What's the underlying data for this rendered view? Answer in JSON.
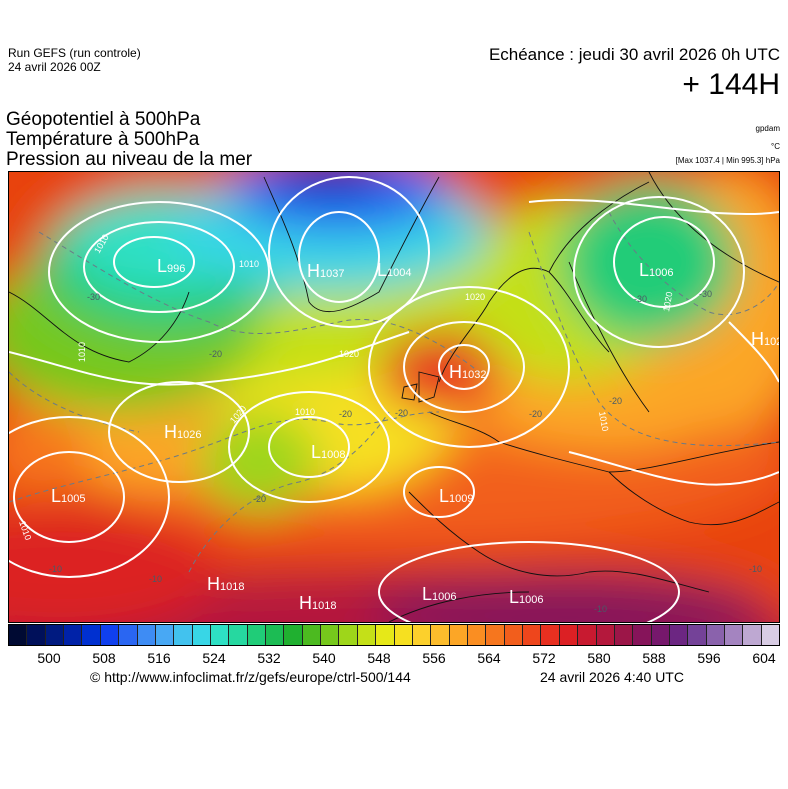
{
  "header": {
    "run_title": "Run GEFS (run controle)",
    "run_date": "24 avril 2026 00Z",
    "echeance": "Echéance : jeudi 30 avril 2026 0h UTC",
    "horizon": "+ 144H"
  },
  "parameters": [
    "Géopotentiel à 500hPa",
    "Température à 500hPa",
    "Pression au niveau de la mer"
  ],
  "units": {
    "geopotential": "gpdam",
    "temperature": "°C",
    "pressure": "[Max 1037.4 | Min 995.3] hPa"
  },
  "colorbar": {
    "tick_labels": [
      "500",
      "508",
      "516",
      "524",
      "532",
      "540",
      "548",
      "556",
      "564",
      "572",
      "580",
      "588",
      "596",
      "604"
    ],
    "colors": [
      "#000a33",
      "#00105a",
      "#001a80",
      "#0022a8",
      "#0030d0",
      "#1040ee",
      "#2a66f2",
      "#3e8cf4",
      "#48a8f4",
      "#42c2ee",
      "#38d6e6",
      "#2ee0c4",
      "#26d8a0",
      "#20cc78",
      "#1cbc54",
      "#20b030",
      "#4cba20",
      "#76c81c",
      "#9ed61a",
      "#c4e018",
      "#e6e818",
      "#f6e020",
      "#fcd02c",
      "#fcbc2c",
      "#fca626",
      "#fa8e22",
      "#f6761e",
      "#f25e1c",
      "#ee461c",
      "#e83020",
      "#dc2024",
      "#c81a30",
      "#b4183c",
      "#9c1648",
      "#86145a",
      "#76186c",
      "#6c2682",
      "#744298",
      "#8a62ac",
      "#a484c0",
      "#bea8d2",
      "#d8cce4"
    ]
  },
  "map": {
    "pressure_centers": [
      {
        "type": "L",
        "value": "996"
      },
      {
        "type": "H",
        "value": "1037"
      },
      {
        "type": "L",
        "value": "1004"
      },
      {
        "type": "L",
        "value": "1006"
      },
      {
        "type": "H",
        "value": "1032"
      },
      {
        "type": "H",
        "value": "1026"
      },
      {
        "type": "L",
        "value": "1008"
      },
      {
        "type": "L",
        "value": "1005"
      },
      {
        "type": "L",
        "value": "1009"
      },
      {
        "type": "H",
        "value": "1018"
      },
      {
        "type": "H",
        "value": "1018"
      },
      {
        "type": "L",
        "value": "1006"
      },
      {
        "type": "L",
        "value": "1006"
      },
      {
        "type": "H",
        "value": "102"
      }
    ],
    "isobar_labels": [
      "1010",
      "1020",
      "1010",
      "1020",
      "1010",
      "1010",
      "1020",
      "1010",
      "1010",
      "1020"
    ],
    "temperature_labels": [
      "-20",
      "-30",
      "-20",
      "-20",
      "-20",
      "-30",
      "-30",
      "-20",
      "-10",
      "-20",
      "-10",
      "-10",
      "-10"
    ]
  },
  "footer": {
    "url": "© http://www.infoclimat.fr/z/gefs/europe/ctrl-500/144",
    "timestamp": "24 avril 2026  4:40 UTC"
  }
}
